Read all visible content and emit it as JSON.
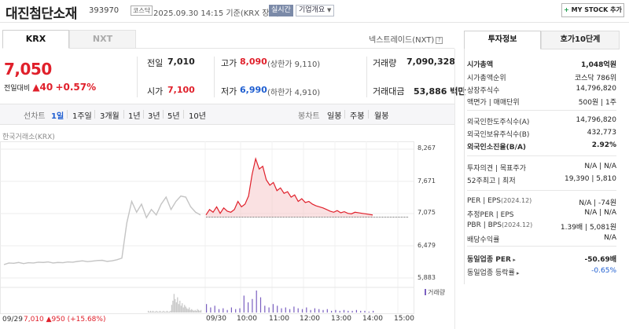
{
  "header": {
    "stock_name": "대진첨단소재",
    "stock_code": "393970",
    "market_badge": "코스닥",
    "datetime": "2025.09.30 14:15  기준(KRX 장중)",
    "realtime_badge": "실시간",
    "overview_select": "기업개요",
    "mystock_label": "MY STOCK 추가"
  },
  "exchange_tabs": [
    "KRX",
    "NXT"
  ],
  "nxt_link": "넥스트레이드(NXT)",
  "price": {
    "current": "7,050",
    "change_label": "전일대비",
    "change": "▲40",
    "change_pct": "+0.57%"
  },
  "quote": {
    "prev_label": "전일",
    "prev": "7,010",
    "high_label": "고가",
    "high": "8,090",
    "upper_limit": "(상한가 9,110)",
    "volume_label": "거래량",
    "volume": "7,090,328",
    "open_label": "시가",
    "open": "7,100",
    "low_label": "저가",
    "low": "6,990",
    "lower_limit": "(하한가 4,910)",
    "amount_label": "거래대금",
    "amount": "53,886 백만"
  },
  "periods": [
    "선차트",
    "1일",
    "1주일",
    "3개월",
    "1년",
    "3년",
    "5년",
    "10년"
  ],
  "chart_types": [
    "봉차트",
    "일봉",
    "주봉",
    "월봉"
  ],
  "chart_note": "한국거래소(KRX)",
  "chart_footer": {
    "date": "09/29",
    "change": "7,010 ▲950 (+15.68%)",
    "volume_label": "거래량"
  },
  "chart_data": {
    "type": "line",
    "title": "",
    "y_ticks": [
      "8,267",
      "7,671",
      "7,075",
      "6,479",
      "5,883"
    ],
    "x_ticks": [
      "09/30",
      "10:00",
      "11:00",
      "12:00",
      "13:00",
      "14:00",
      "15:00"
    ],
    "ylim": [
      5883,
      8267
    ],
    "reference_price": 7010,
    "series": [
      {
        "name": "09/29",
        "color": "#c4c4c4",
        "values": [
          6130,
          6160,
          6155,
          6170,
          6150,
          6165,
          6160,
          6175,
          6170,
          6180,
          6160,
          6170,
          6165,
          6180,
          6175,
          6190,
          6200,
          6185,
          6195,
          6205,
          6210,
          6190,
          6200,
          6220,
          6250,
          6900,
          7300,
          7100,
          7250,
          7000,
          7150,
          7050,
          7250,
          7380,
          7150,
          7300,
          7400,
          7380,
          7200,
          7100,
          7050
        ]
      },
      {
        "name": "09/30",
        "color": "#e0202b",
        "values": [
          7050,
          7150,
          7100,
          7200,
          7080,
          7180,
          7120,
          7100,
          7150,
          7300,
          7200,
          7250,
          7400,
          7800,
          8090,
          7900,
          7950,
          7700,
          7600,
          7650,
          7500,
          7550,
          7450,
          7480,
          7380,
          7420,
          7300,
          7350,
          7280,
          7300,
          7250,
          7220,
          7200,
          7180,
          7150,
          7120,
          7100,
          7130,
          7090,
          7110,
          7080,
          7070,
          7100,
          7090,
          7080,
          7070,
          7060,
          7050
        ]
      }
    ],
    "volume_series": [
      {
        "name": "09/29",
        "color": "#c6c6c6",
        "values": [
          2,
          1,
          2,
          1,
          2,
          1,
          1,
          2,
          1,
          1,
          2,
          1,
          1,
          2,
          1,
          1,
          2,
          1,
          1,
          2,
          9,
          14,
          22,
          16,
          12,
          18,
          10,
          14,
          8,
          11,
          6,
          9,
          7,
          5,
          4,
          6,
          3,
          4,
          3,
          2,
          3,
          2,
          4,
          3,
          2,
          3
        ]
      },
      {
        "name": "09/30",
        "color": "#7a5fc0",
        "values": [
          10,
          6,
          8,
          4,
          5,
          3,
          6,
          4,
          5,
          20,
          12,
          16,
          26,
          18,
          8,
          6,
          10,
          8,
          5,
          6,
          4,
          7,
          5,
          4,
          6,
          3,
          5,
          4,
          3,
          4,
          2,
          3,
          2,
          3,
          2,
          2,
          3,
          2,
          2,
          1,
          2
        ]
      }
    ]
  },
  "right_panel": {
    "tabs": [
      "투자정보",
      "호가10단계"
    ],
    "rows": [
      {
        "label": "시가총액",
        "value": "1,048억원",
        "bold": true
      },
      {
        "label": "시가총액순위",
        "value": "코스닥 786위"
      },
      {
        "label": "상장주식수",
        "value": "14,796,820"
      },
      {
        "label": "액면가 | 매매단위",
        "value": "500원 | 1주"
      },
      {
        "label": "외국인한도주식수(A)",
        "value": "14,796,820"
      },
      {
        "label": "외국인보유주식수(B)",
        "value": "432,773"
      },
      {
        "label": "외국인소진율(B/A)",
        "value": "2.92%",
        "bold": true
      },
      {
        "label": "투자의견 | 목표주가",
        "value": "N/A | N/A"
      },
      {
        "label": "52주최고 | 최저",
        "value": "19,390 | 5,810"
      },
      {
        "label": "PER | EPS",
        "sub": "(2024.12)",
        "value": "N/A | -74원"
      },
      {
        "label": "추정PER | EPS",
        "value": "N/A | N/A"
      },
      {
        "label": "PBR | BPS",
        "sub": "(2024.12)",
        "value": "1.39배 | 5,081원"
      },
      {
        "label": "배당수익률",
        "value": "N/A"
      },
      {
        "label": "동일업종 PER",
        "value": "-50.69배",
        "bold": true
      },
      {
        "label": "동일업종 등락률",
        "value": "-0.65%",
        "value_color": "#1e5ed1"
      }
    ]
  }
}
